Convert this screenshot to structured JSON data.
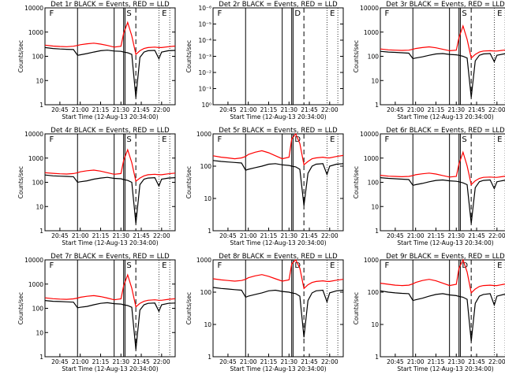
{
  "figure": {
    "x_axis_label": "Start Time (12-Aug-13 20:34:00)",
    "y_axis_label": "Counts/sec",
    "x_tick_labels": [
      "20:45",
      "21:00",
      "21:15",
      "21:30",
      "21:45",
      "22:00"
    ]
  },
  "chart_data": [
    {
      "title": "Det 1r BLACK = Events, RED = LLD",
      "type": "line",
      "scale": "log",
      "ylim": [
        1,
        10000
      ],
      "y_tick_labels": [
        "1",
        "10",
        "100",
        "1000",
        "10000"
      ],
      "markers": [
        "F",
        "S",
        "E"
      ],
      "x": [
        "20:34",
        "20:40",
        "20:45",
        "20:50",
        "20:55",
        "20:58",
        "21:00",
        "21:05",
        "21:10",
        "21:15",
        "21:20",
        "21:25",
        "21:30",
        "21:32",
        "21:35",
        "21:38",
        "21:41",
        "21:44",
        "21:47",
        "21:50",
        "21:55",
        "21:58",
        "22:00",
        "22:05",
        "22:10"
      ],
      "series": [
        {
          "name": "BLACK = Events",
          "color": "#000000",
          "values": [
            230,
            210,
            200,
            195,
            190,
            110,
            115,
            130,
            150,
            170,
            180,
            165,
            160,
            150,
            140,
            120,
            2,
            90,
            150,
            170,
            175,
            80,
            150,
            170,
            175
          ]
        },
        {
          "name": "RED = LLD",
          "color": "#ff0000",
          "values": [
            290,
            265,
            255,
            250,
            260,
            280,
            300,
            330,
            350,
            320,
            280,
            240,
            260,
            900,
            2500,
            700,
            120,
            170,
            210,
            230,
            240,
            230,
            230,
            250,
            265
          ]
        }
      ]
    },
    {
      "title": "Det 2r BLACK = Events, RED = LLD",
      "type": "line",
      "scale": "log",
      "ylim": [
        1,
        1e-06
      ],
      "y_tick_labels": [
        "10⁰",
        "10⁻¹",
        "10⁻²",
        "10⁻³",
        "10⁻⁴",
        "10⁻⁵",
        "10⁻⁶"
      ],
      "markers": [
        "F",
        "D",
        "E"
      ],
      "x": [],
      "series": []
    },
    {
      "title": "Det 3r BLACK = Events, RED = LLD",
      "type": "line",
      "scale": "log",
      "ylim": [
        1,
        10000
      ],
      "y_tick_labels": [
        "1",
        "10",
        "100",
        "1000",
        "10000"
      ],
      "markers": [
        "F",
        "S",
        "E"
      ],
      "x": [
        "20:34",
        "20:40",
        "20:45",
        "20:50",
        "20:55",
        "20:58",
        "21:00",
        "21:05",
        "21:10",
        "21:15",
        "21:20",
        "21:25",
        "21:30",
        "21:32",
        "21:35",
        "21:38",
        "21:41",
        "21:44",
        "21:47",
        "21:50",
        "21:55",
        "21:58",
        "22:00",
        "22:05",
        "22:10"
      ],
      "series": [
        {
          "name": "BLACK = Events",
          "color": "#000000",
          "values": [
            160,
            150,
            145,
            140,
            135,
            80,
            85,
            95,
            110,
            125,
            130,
            120,
            115,
            110,
            100,
            85,
            2,
            65,
            110,
            125,
            130,
            60,
            110,
            125,
            130
          ]
        },
        {
          "name": "RED = LLD",
          "color": "#ff0000",
          "values": [
            200,
            185,
            180,
            175,
            180,
            195,
            210,
            230,
            245,
            225,
            195,
            170,
            180,
            600,
            1800,
            500,
            85,
            120,
            150,
            165,
            170,
            165,
            165,
            180,
            190
          ]
        }
      ]
    },
    {
      "title": "Det 4r BLACK = Events, RED = LLD",
      "type": "line",
      "scale": "log",
      "ylim": [
        1,
        10000
      ],
      "y_tick_labels": [
        "1",
        "10",
        "100",
        "1000",
        "10000"
      ],
      "markers": [
        "F",
        "S",
        "E"
      ],
      "x": [
        "20:34",
        "20:40",
        "20:45",
        "20:50",
        "20:55",
        "20:58",
        "21:00",
        "21:05",
        "21:10",
        "21:15",
        "21:20",
        "21:25",
        "21:30",
        "21:32",
        "21:35",
        "21:38",
        "21:41",
        "21:44",
        "21:47",
        "21:50",
        "21:55",
        "21:58",
        "22:00",
        "22:05",
        "22:10"
      ],
      "series": [
        {
          "name": "BLACK = Events",
          "color": "#000000",
          "values": [
            200,
            185,
            180,
            175,
            170,
            100,
            105,
            115,
            135,
            150,
            160,
            145,
            140,
            130,
            120,
            100,
            2,
            80,
            135,
            150,
            155,
            70,
            135,
            150,
            155
          ]
        },
        {
          "name": "RED = LLD",
          "color": "#ff0000",
          "values": [
            250,
            235,
            225,
            220,
            230,
            250,
            270,
            300,
            320,
            290,
            250,
            215,
            230,
            800,
            2200,
            650,
            110,
            150,
            185,
            205,
            215,
            205,
            205,
            225,
            240
          ]
        }
      ]
    },
    {
      "title": "Det 5r BLACK = Events, RED = LLD",
      "type": "line",
      "scale": "log",
      "ylim": [
        1,
        1000
      ],
      "y_tick_labels": [
        "1",
        "10",
        "100",
        "1000"
      ],
      "markers": [
        "F",
        "D",
        "E"
      ],
      "x": [
        "20:34",
        "20:40",
        "20:45",
        "20:50",
        "20:55",
        "20:58",
        "21:00",
        "21:05",
        "21:10",
        "21:15",
        "21:20",
        "21:25",
        "21:30",
        "21:32",
        "21:35",
        "21:38",
        "21:41",
        "21:44",
        "21:47",
        "21:50",
        "21:55",
        "21:58",
        "22:00",
        "22:05",
        "22:10"
      ],
      "series": [
        {
          "name": "BLACK = Events",
          "color": "#000000",
          "values": [
            150,
            140,
            135,
            130,
            125,
            75,
            80,
            90,
            100,
            115,
            120,
            110,
            105,
            100,
            95,
            80,
            6,
            60,
            100,
            115,
            120,
            55,
            100,
            115,
            120
          ]
        },
        {
          "name": "RED = LLD",
          "color": "#ff0000",
          "values": [
            210,
            190,
            180,
            170,
            180,
            200,
            230,
            270,
            300,
            260,
            210,
            170,
            190,
            700,
            1000,
            500,
            110,
            140,
            170,
            180,
            190,
            180,
            180,
            200,
            215
          ]
        }
      ]
    },
    {
      "title": "Det 6r BLACK = Events, RED = LLD",
      "type": "line",
      "scale": "log",
      "ylim": [
        1,
        10000
      ],
      "y_tick_labels": [
        "1",
        "10",
        "100",
        "1000",
        "10000"
      ],
      "markers": [
        "F",
        "S",
        "E"
      ],
      "x": [
        "20:34",
        "20:40",
        "20:45",
        "20:50",
        "20:55",
        "20:58",
        "21:00",
        "21:05",
        "21:10",
        "21:15",
        "21:20",
        "21:25",
        "21:30",
        "21:32",
        "21:35",
        "21:38",
        "21:41",
        "21:44",
        "21:47",
        "21:50",
        "21:55",
        "21:58",
        "22:00",
        "22:05",
        "22:10"
      ],
      "series": [
        {
          "name": "BLACK = Events",
          "color": "#000000",
          "values": [
            155,
            145,
            140,
            135,
            130,
            75,
            80,
            90,
            105,
            120,
            125,
            115,
            110,
            105,
            95,
            80,
            2,
            60,
            105,
            120,
            125,
            55,
            105,
            120,
            125
          ]
        },
        {
          "name": "RED = LLD",
          "color": "#ff0000",
          "values": [
            195,
            180,
            175,
            170,
            175,
            190,
            205,
            225,
            240,
            220,
            190,
            165,
            175,
            580,
            1750,
            480,
            80,
            115,
            145,
            160,
            165,
            160,
            160,
            175,
            185
          ]
        }
      ]
    },
    {
      "title": "Det 7r BLACK = Events, RED = LLD",
      "type": "line",
      "scale": "log",
      "ylim": [
        1,
        10000
      ],
      "y_tick_labels": [
        "1",
        "10",
        "100",
        "1000",
        "10000"
      ],
      "markers": [
        "F",
        "S",
        "E"
      ],
      "x": [
        "20:34",
        "20:40",
        "20:45",
        "20:50",
        "20:55",
        "20:58",
        "21:00",
        "21:05",
        "21:10",
        "21:15",
        "21:20",
        "21:25",
        "21:30",
        "21:32",
        "21:35",
        "21:38",
        "21:41",
        "21:44",
        "21:47",
        "21:50",
        "21:55",
        "21:58",
        "22:00",
        "22:05",
        "22:10"
      ],
      "series": [
        {
          "name": "BLACK = Events",
          "color": "#000000",
          "values": [
            210,
            195,
            190,
            185,
            180,
            105,
            110,
            120,
            140,
            160,
            170,
            155,
            150,
            140,
            130,
            110,
            2,
            85,
            140,
            160,
            165,
            75,
            140,
            160,
            165
          ]
        },
        {
          "name": "RED = LLD",
          "color": "#ff0000",
          "values": [
            270,
            250,
            240,
            235,
            245,
            265,
            285,
            315,
            335,
            305,
            265,
            225,
            245,
            850,
            2400,
            680,
            115,
            160,
            195,
            215,
            225,
            215,
            215,
            235,
            250
          ]
        }
      ]
    },
    {
      "title": "Det 8r BLACK = Events, RED = LLD",
      "type": "line",
      "scale": "log",
      "ylim": [
        1,
        1000
      ],
      "y_tick_labels": [
        "1",
        "10",
        "100",
        "1000"
      ],
      "markers": [
        "F",
        "D",
        "E"
      ],
      "x": [
        "20:34",
        "20:40",
        "20:45",
        "20:50",
        "20:55",
        "20:58",
        "21:00",
        "21:05",
        "21:10",
        "21:15",
        "21:20",
        "21:25",
        "21:30",
        "21:32",
        "21:35",
        "21:38",
        "21:41",
        "21:44",
        "21:47",
        "21:50",
        "21:55",
        "21:58",
        "22:00",
        "22:05",
        "22:10"
      ],
      "series": [
        {
          "name": "BLACK = Events",
          "color": "#000000",
          "values": [
            140,
            130,
            125,
            120,
            115,
            70,
            75,
            85,
            95,
            110,
            115,
            105,
            100,
            95,
            90,
            75,
            4,
            55,
            95,
            110,
            115,
            50,
            95,
            110,
            115
          ]
        },
        {
          "name": "RED = LLD",
          "color": "#ff0000",
          "values": [
            260,
            240,
            230,
            220,
            230,
            250,
            280,
            320,
            350,
            310,
            260,
            220,
            240,
            750,
            1000,
            550,
            130,
            170,
            200,
            215,
            225,
            215,
            215,
            235,
            250
          ]
        }
      ]
    },
    {
      "title": "Det 9r BLACK = Events, RED = LLD",
      "type": "line",
      "scale": "log",
      "ylim": [
        1,
        1000
      ],
      "y_tick_labels": [
        "1",
        "10",
        "100",
        "1000"
      ],
      "markers": [
        "F",
        "D",
        "E"
      ],
      "x": [
        "20:34",
        "20:40",
        "20:45",
        "20:50",
        "20:55",
        "20:58",
        "21:00",
        "21:05",
        "21:10",
        "21:15",
        "21:20",
        "21:25",
        "21:30",
        "21:32",
        "21:35",
        "21:38",
        "21:41",
        "21:44",
        "21:47",
        "21:50",
        "21:55",
        "21:58",
        "22:00",
        "22:05",
        "22:10"
      ],
      "series": [
        {
          "name": "BLACK = Events",
          "color": "#000000",
          "values": [
            110,
            100,
            95,
            92,
            90,
            55,
            58,
            65,
            75,
            85,
            90,
            82,
            78,
            74,
            70,
            60,
            3,
            45,
            75,
            85,
            90,
            40,
            75,
            85,
            90
          ]
        },
        {
          "name": "RED = LLD",
          "color": "#ff0000",
          "values": [
            190,
            175,
            165,
            160,
            165,
            180,
            200,
            230,
            250,
            225,
            190,
            160,
            175,
            550,
            1000,
            420,
            95,
            125,
            150,
            160,
            165,
            160,
            160,
            175,
            185
          ]
        }
      ]
    }
  ]
}
